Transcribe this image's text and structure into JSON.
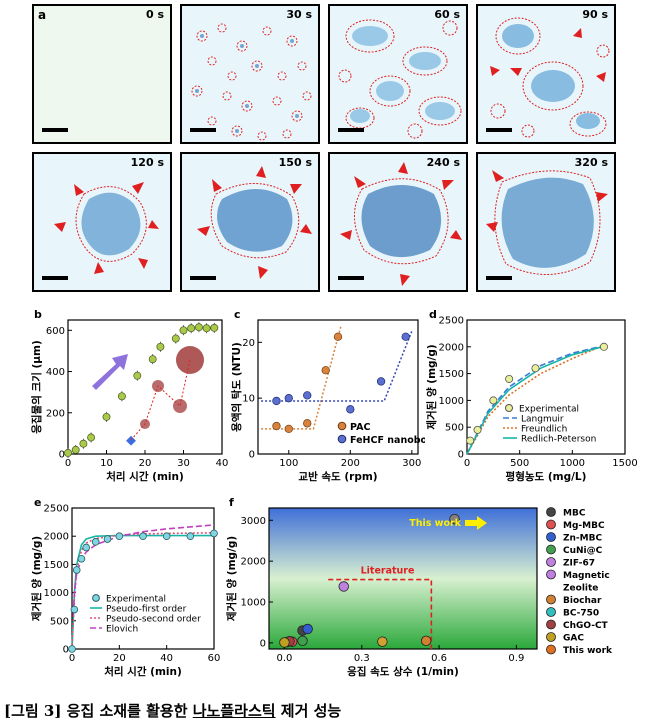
{
  "panel_a": {
    "letter": "a",
    "times": [
      "0 s",
      "30 s",
      "60 s",
      "90 s",
      "120 s",
      "150 s",
      "240 s",
      "320 s"
    ]
  },
  "chart_data": [
    {
      "panel": "b",
      "type": "scatter",
      "xlabel": "처리 시간 (min)",
      "ylabel": "응집물의 크기 (μm)",
      "xlim": [
        0,
        40
      ],
      "ylim": [
        0,
        650
      ],
      "xticks": [
        0,
        10,
        20,
        30,
        40
      ],
      "yticks": [
        0,
        200,
        400,
        600
      ],
      "x": [
        0,
        2,
        4,
        6,
        10,
        14,
        18,
        22,
        24,
        28,
        30,
        32,
        34,
        36,
        38
      ],
      "values": [
        5,
        20,
        50,
        80,
        180,
        280,
        380,
        460,
        520,
        560,
        600,
        610,
        615,
        610,
        612
      ]
    },
    {
      "panel": "c",
      "type": "scatter",
      "xlabel": "교반 속도 (rpm)",
      "ylabel": "용액의 탁도 (NTU)",
      "xlim": [
        50,
        310
      ],
      "ylim": [
        0,
        24
      ],
      "xticks": [
        100,
        200,
        300
      ],
      "yticks": [
        0,
        10,
        20
      ],
      "series": [
        {
          "name": "PAC",
          "x": [
            80,
            100,
            130,
            160,
            180
          ],
          "values": [
            5,
            4.5,
            5.5,
            15,
            21
          ]
        },
        {
          "name": "FeHCF nanobot",
          "x": [
            80,
            100,
            130,
            200,
            250,
            290
          ],
          "values": [
            9.5,
            10,
            10.5,
            8,
            13,
            21
          ]
        }
      ]
    },
    {
      "panel": "d",
      "type": "scatter",
      "xlabel": "평형농도 (mg/L)",
      "ylabel": "제거된 양 (mg/g)",
      "xlim": [
        0,
        1500
      ],
      "ylim": [
        0,
        2500
      ],
      "xticks": [
        0,
        500,
        1000,
        1500
      ],
      "yticks": [
        0,
        500,
        1000,
        1500,
        2000,
        2500
      ],
      "series": [
        {
          "name": "Experimental",
          "x": [
            30,
            100,
            250,
            400,
            650,
            1300
          ],
          "values": [
            250,
            450,
            1000,
            1400,
            1600,
            2000
          ]
        },
        {
          "name": "Langmuir",
          "x": [
            0,
            200,
            400,
            700,
            1000,
            1300
          ],
          "values": [
            0,
            800,
            1250,
            1650,
            1880,
            2020
          ]
        },
        {
          "name": "Freundlich",
          "x": [
            0,
            200,
            400,
            700,
            1000,
            1300
          ],
          "values": [
            0,
            700,
            1100,
            1500,
            1780,
            2030
          ]
        },
        {
          "name": "Redlich-Peterson",
          "x": [
            0,
            200,
            400,
            700,
            1000,
            1300
          ],
          "values": [
            0,
            760,
            1200,
            1600,
            1850,
            2010
          ]
        }
      ]
    },
    {
      "panel": "e",
      "type": "scatter",
      "xlabel": "처리 시간 (min)",
      "ylabel": "제거된 양 (mg/g)",
      "xlim": [
        0,
        60
      ],
      "ylim": [
        0,
        2500
      ],
      "xticks": [
        0,
        20,
        40,
        60
      ],
      "yticks": [
        0,
        500,
        1000,
        1500,
        2000,
        2500
      ],
      "series": [
        {
          "name": "Experimental",
          "x": [
            0,
            1,
            2,
            4,
            6,
            10,
            15,
            20,
            30,
            40,
            50,
            60
          ],
          "values": [
            0,
            700,
            1400,
            1600,
            1800,
            1900,
            1950,
            2000,
            2000,
            2000,
            2000,
            2050
          ]
        },
        {
          "name": "Pseudo-first order",
          "x": [
            0,
            1,
            2,
            4,
            6,
            10,
            20,
            30,
            40,
            60
          ],
          "values": [
            0,
            1000,
            1500,
            1850,
            1950,
            2000,
            2010,
            2010,
            2010,
            2010
          ]
        },
        {
          "name": "Pseudo-second order",
          "x": [
            0,
            1,
            2,
            4,
            6,
            10,
            20,
            30,
            40,
            60
          ],
          "values": [
            0,
            900,
            1400,
            1750,
            1880,
            1960,
            2020,
            2040,
            2050,
            2060
          ]
        },
        {
          "name": "Elovich",
          "x": [
            0.5,
            1,
            2,
            4,
            6,
            10,
            20,
            30,
            40,
            60
          ],
          "values": [
            600,
            1000,
            1350,
            1600,
            1720,
            1850,
            2000,
            2080,
            2130,
            2200
          ]
        }
      ]
    },
    {
      "panel": "f",
      "type": "scatter",
      "xlabel": "응집 속도 상수 (1/min)",
      "ylabel": "제거된 양 (mg/g)",
      "xlim": [
        -0.06,
        0.98
      ],
      "ylim": [
        -150,
        3300
      ],
      "xticks": [
        0.0,
        0.3,
        0.6,
        0.9
      ],
      "yticks": [
        0,
        1000,
        2000,
        3000
      ],
      "points": [
        {
          "name": "MBC",
          "x": 0.07,
          "y": 300
        },
        {
          "name": "Mg-MBC",
          "x": 0.03,
          "y": 30
        },
        {
          "name": "Zn-MBC",
          "x": 0.09,
          "y": 340
        },
        {
          "name": "CuNi@C",
          "x": 0.07,
          "y": 50
        },
        {
          "name": "ZIF-67",
          "x": 0.23,
          "y": 1380
        },
        {
          "name": "Magnetic Zeolite",
          "x": 0.38,
          "y": 30
        },
        {
          "name": "Biochar",
          "x": 0.55,
          "y": 50
        },
        {
          "name": "BC-750",
          "x": 0.01,
          "y": 20
        },
        {
          "name": "ChGO-CT",
          "x": 0.02,
          "y": 40
        },
        {
          "name": "GAC",
          "x": 0.0,
          "y": 10
        },
        {
          "name": "This work",
          "x": 0.66,
          "y": 3030
        }
      ],
      "annotations": {
        "this_work": "This work",
        "literature": "Literature"
      }
    }
  ],
  "labels": {
    "b": "b",
    "c": "c",
    "d": "d",
    "e": "e",
    "f": "f",
    "legend_c": [
      "PAC",
      "FeHCF nanobot"
    ],
    "legend_d": [
      "Experimental",
      "Langmuir",
      "Freundlich",
      "Redlich-Peterson"
    ],
    "legend_e": [
      "Experimental",
      "Pseudo-first order",
      "Pseudo-second order",
      "Elovich"
    ],
    "legend_f": [
      "MBC",
      "Mg-MBC",
      "Zn-MBC",
      "CuNi@C",
      "ZIF-67",
      "Magnetic",
      "Zeolite",
      "Biochar",
      "BC-750",
      "ChGO-CT",
      "GAC",
      "This work"
    ]
  },
  "colors": {
    "green_pt": "#a9c94a",
    "orange": "#d9823b",
    "blue": "#5b6fd0",
    "teal": "#18b4a8",
    "red": "#e02020",
    "blue_ink": "#2b6fb5"
  },
  "caption": {
    "prefix": "[그림 3] 응집 소재를 활용한 ",
    "underlined": "나노플라스틱",
    "suffix": " 제거 성능"
  }
}
